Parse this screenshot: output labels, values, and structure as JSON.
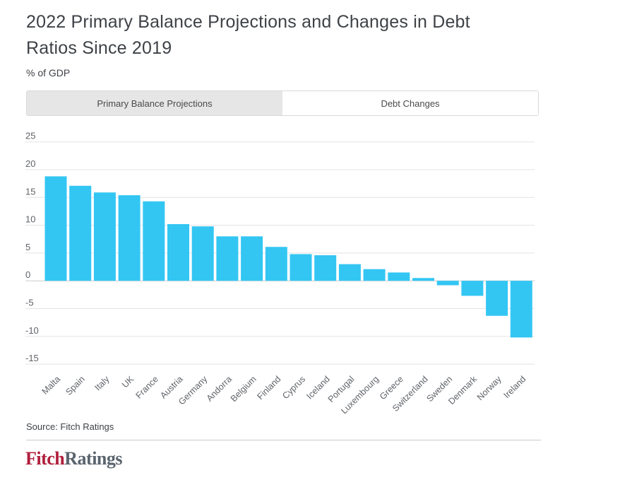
{
  "header": {
    "title": "2022 Primary Balance Projections and Changes in Debt Ratios Since 2019",
    "subtitle": "% of GDP"
  },
  "tabs": [
    {
      "label": "Primary Balance Projections",
      "active": false
    },
    {
      "label": "Debt Changes",
      "active": true
    }
  ],
  "chart_data": {
    "type": "bar",
    "title": "2022 Primary Balance Projections and Changes in Debt Ratios Since 2019",
    "active_tab_series": "Debt Changes",
    "ylabel": "% of GDP",
    "xlabel": "",
    "ylim": [
      -15,
      25
    ],
    "ytick_interval": 5,
    "grid": true,
    "legend": false,
    "categories": [
      "Malta",
      "Spain",
      "Italy",
      "UK",
      "France",
      "Austria",
      "Germany",
      "Andorra",
      "Belgium",
      "Finland",
      "Cyprus",
      "Iceland",
      "Portugal",
      "Luxembourg",
      "Greece",
      "Switzerland",
      "Sweden",
      "Denmark",
      "Norway",
      "Ireland"
    ],
    "values": [
      18.8,
      17.1,
      15.9,
      15.4,
      14.3,
      10.2,
      9.8,
      8.0,
      8.0,
      6.1,
      4.8,
      4.6,
      3.0,
      2.1,
      1.5,
      0.5,
      -0.8,
      -2.7,
      -6.3,
      -10.2
    ]
  },
  "footer": {
    "source": "Source: Fitch Ratings",
    "logo": {
      "part1": "Fitch",
      "part2": "Ratings"
    }
  },
  "colors": {
    "bar": "#33c6f3",
    "gridline": "#e3e3e3",
    "zero_line": "#cbcbcb",
    "logo_red": "#b01e3b",
    "logo_gray": "#5a646e",
    "text_dark": "#3e4247",
    "tick_text": "#5f6368"
  }
}
